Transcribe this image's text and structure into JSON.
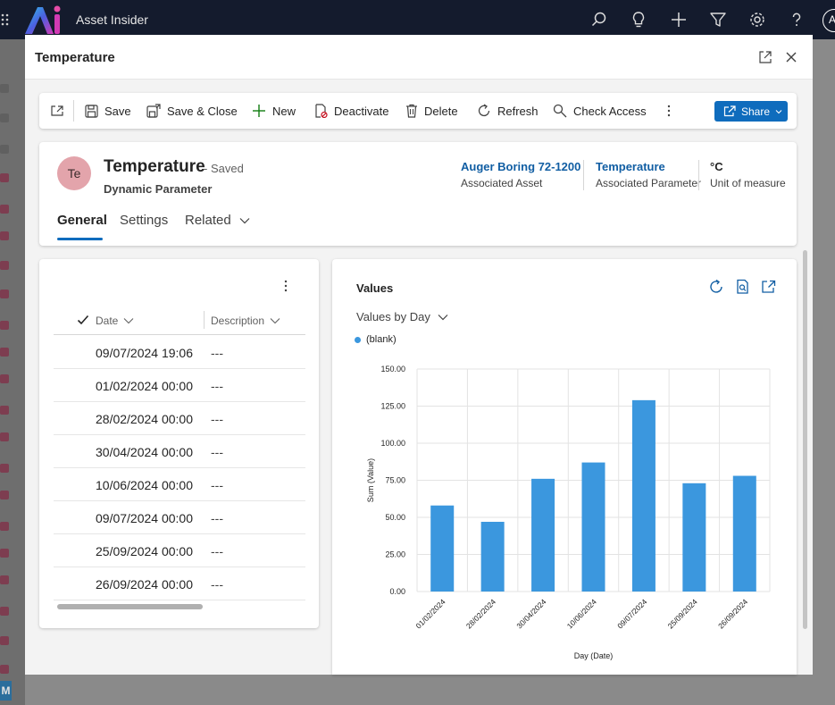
{
  "app": {
    "title": "Asset Insider",
    "user_initial": "A"
  },
  "dialog": {
    "title": "Temperature"
  },
  "commands": {
    "save": "Save",
    "save_close": "Save & Close",
    "new": "New",
    "deactivate": "Deactivate",
    "delete": "Delete",
    "refresh": "Refresh",
    "check_access": "Check Access",
    "share": "Share"
  },
  "record": {
    "initials": "Te",
    "title": "Temperature",
    "status": "- Saved",
    "entity_type": "Dynamic Parameter",
    "fields": [
      {
        "value": "Auger Boring 72-1200",
        "label": "Associated Asset"
      },
      {
        "value": "Temperature",
        "label": "Associated Parameter"
      },
      {
        "value": "°C",
        "label": "Unit of measure"
      }
    ],
    "tabs": [
      "General",
      "Settings",
      "Related"
    ]
  },
  "grid": {
    "columns": [
      "Date",
      "Description"
    ],
    "rows": [
      {
        "date": "09/07/2024 19:06",
        "description": "---"
      },
      {
        "date": "01/02/2024 00:00",
        "description": "---"
      },
      {
        "date": "28/02/2024 00:00",
        "description": "---"
      },
      {
        "date": "30/04/2024 00:00",
        "description": "---"
      },
      {
        "date": "10/06/2024 00:00",
        "description": "---"
      },
      {
        "date": "09/07/2024 00:00",
        "description": "---"
      },
      {
        "date": "25/09/2024 00:00",
        "description": "---"
      },
      {
        "date": "26/09/2024 00:00",
        "description": "---"
      }
    ]
  },
  "chart_panel": {
    "title": "Values",
    "view": "Values by Day"
  },
  "chart_data": {
    "type": "bar",
    "categories": [
      "01/02/2024",
      "28/02/2024",
      "30/04/2024",
      "10/06/2024",
      "09/07/2024",
      "25/09/2024",
      "26/09/2024"
    ],
    "series": [
      {
        "name": "(blank)",
        "values": [
          58,
          47,
          76,
          87,
          129,
          73,
          78
        ]
      }
    ],
    "yticks": [
      "0.00",
      "25.00",
      "50.00",
      "75.00",
      "100.00",
      "125.00",
      "150.00"
    ],
    "ylim": [
      0,
      150
    ],
    "xlabel": "Day (Date)",
    "ylabel": "Sum (Value)",
    "legend_position": "top-left",
    "grid": true,
    "bar_color": "#3b97de"
  }
}
